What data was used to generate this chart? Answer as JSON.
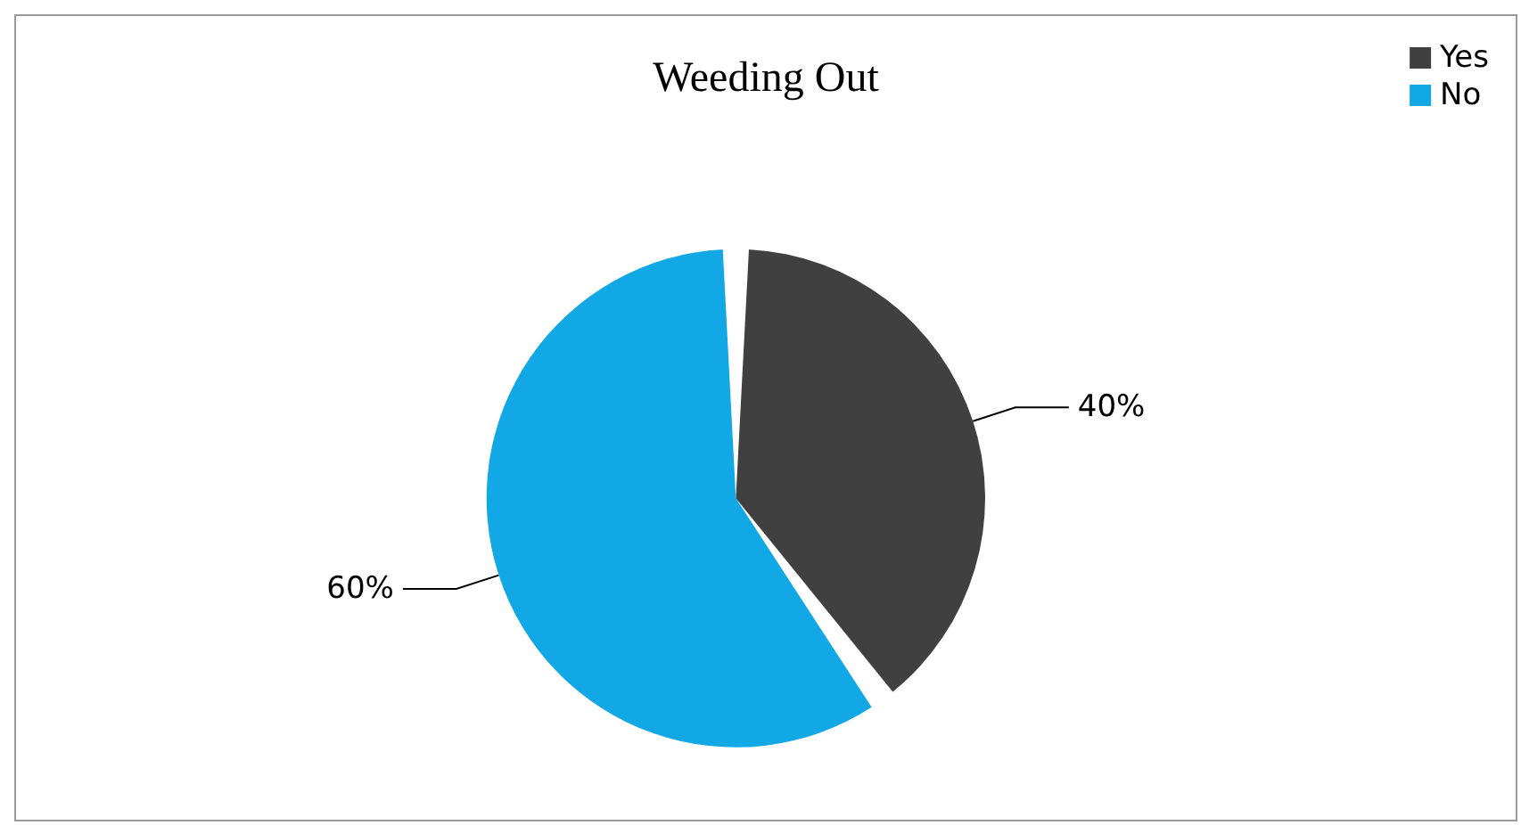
{
  "chart_data": {
    "type": "pie",
    "title": "Weeding Out",
    "categories": [
      "Yes",
      "No"
    ],
    "values": [
      40,
      60
    ],
    "colors": [
      "#404040",
      "#12a8e6"
    ],
    "value_labels": [
      "40%",
      "60%"
    ],
    "legend": "top right"
  }
}
